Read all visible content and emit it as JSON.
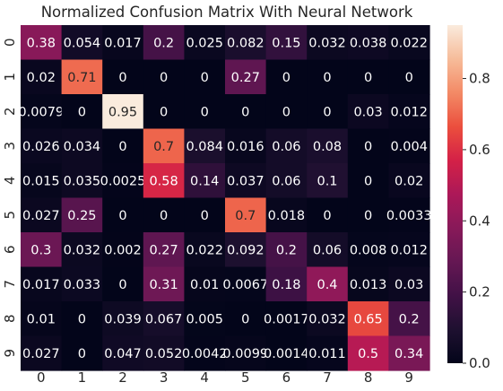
{
  "chart_data": {
    "type": "heatmap",
    "title": "Normalized Confusion Matrix With Neural Network",
    "xlabel": "",
    "ylabel": "",
    "x_tick_labels": [
      "0",
      "1",
      "2",
      "3",
      "4",
      "5",
      "6",
      "7",
      "8",
      "9"
    ],
    "y_tick_labels": [
      "0",
      "1",
      "2",
      "3",
      "4",
      "5",
      "6",
      "7",
      "8",
      "9"
    ],
    "annotations": [
      [
        "0.38",
        "0.054",
        "0.017",
        "0.2",
        "0.025",
        "0.082",
        "0.15",
        "0.032",
        "0.038",
        "0.022"
      ],
      [
        "0.02",
        "0.71",
        "0",
        "0",
        "0",
        "0.27",
        "0",
        "0",
        "0",
        "0"
      ],
      [
        "0.0079",
        "0",
        "0.95",
        "0",
        "0",
        "0",
        "0",
        "0",
        "0.03",
        "0.012"
      ],
      [
        "0.026",
        "0.034",
        "0",
        "0.7",
        "0.084",
        "0.016",
        "0.06",
        "0.08",
        "0",
        "0.004"
      ],
      [
        "0.015",
        "0.035",
        "0.0025",
        "0.58",
        "0.14",
        "0.037",
        "0.06",
        "0.1",
        "0",
        "0.02"
      ],
      [
        "0.027",
        "0.25",
        "0",
        "0",
        "0",
        "0.7",
        "0.018",
        "0",
        "0",
        "0.0033"
      ],
      [
        "0.3",
        "0.032",
        "0.002",
        "0.27",
        "0.022",
        "0.092",
        "0.2",
        "0.06",
        "0.008",
        "0.012"
      ],
      [
        "0.017",
        "0.033",
        "0",
        "0.31",
        "0.01",
        "0.0067",
        "0.18",
        "0.4",
        "0.013",
        "0.03"
      ],
      [
        "0.01",
        "0",
        "0.039",
        "0.067",
        "0.005",
        "0",
        "0.0017",
        "0.032",
        "0.65",
        "0.2"
      ],
      [
        "0.027",
        "0",
        "0.047",
        "0.052",
        "0.0042",
        "0.0099",
        "0.0014",
        "0.011",
        "0.5",
        "0.34"
      ]
    ],
    "colorbar": {
      "min": 0.0,
      "max": 0.95,
      "ticks": [
        0.0,
        0.2,
        0.4,
        0.6,
        0.8
      ],
      "tick_labels": [
        "0.0",
        "0.2",
        "0.4",
        "0.6",
        "0.8"
      ],
      "colormap": "rocket"
    },
    "grid": false
  }
}
